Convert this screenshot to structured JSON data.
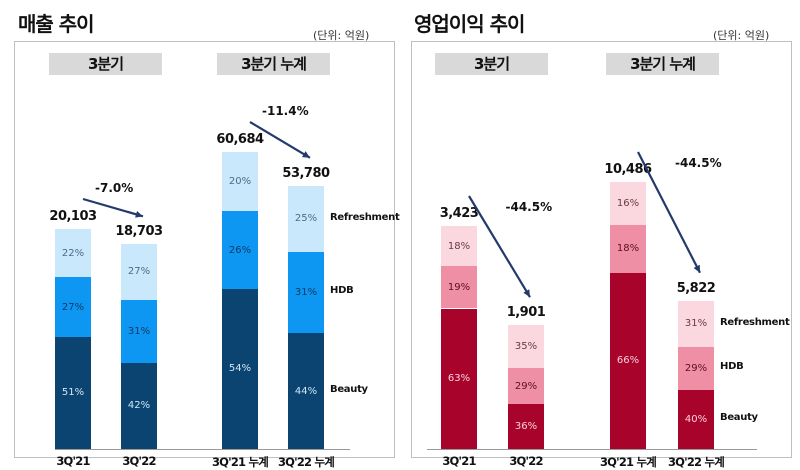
{
  "chart_data": [
    {
      "type": "bar",
      "stacked": true,
      "title": "매출 추이",
      "unit": "(단위: 억원)",
      "colors": {
        "Beauty": "#0b4470",
        "HDB": "#0d96f2",
        "Refreshment": "#c9e8fb"
      },
      "label_colors": {
        "Beauty": "#cfe6f7",
        "HDB": "#0b3d66",
        "Refreshment": "#4a6d88"
      },
      "legend": [
        "Refreshment",
        "HDB",
        "Beauty"
      ],
      "groups": [
        {
          "label": "3분기",
          "categories": [
            "3Q'21",
            "3Q'22"
          ],
          "totals": [
            "20,103",
            "18,703"
          ],
          "total_values": [
            20103,
            18703
          ],
          "change": "-7.0%",
          "series": [
            {
              "name": "Beauty",
              "values": [
                "51%",
                "42%"
              ]
            },
            {
              "name": "HDB",
              "values": [
                "27%",
                "31%"
              ]
            },
            {
              "name": "Refreshment",
              "values": [
                "22%",
                "27%"
              ]
            }
          ]
        },
        {
          "label": "3분기 누계",
          "categories": [
            "3Q'21 누계",
            "3Q'22 누계"
          ],
          "totals": [
            "60,684",
            "53,780"
          ],
          "total_values": [
            60684,
            53780
          ],
          "change": "-11.4%",
          "series": [
            {
              "name": "Beauty",
              "values": [
                "54%",
                "44%"
              ]
            },
            {
              "name": "HDB",
              "values": [
                "26%",
                "31%"
              ]
            },
            {
              "name": "Refreshment",
              "values": [
                "20%",
                "25%"
              ]
            }
          ]
        }
      ]
    },
    {
      "type": "bar",
      "stacked": true,
      "title": "영업이익 추이",
      "unit": "(단위: 억원)",
      "colors": {
        "Beauty": "#a8042b",
        "HDB": "#ef8fa6",
        "Refreshment": "#fbd8df"
      },
      "label_colors": {
        "Beauty": "#fbd2dc",
        "HDB": "#5a1020",
        "Refreshment": "#6a3a44"
      },
      "legend": [
        "Refreshment",
        "HDB",
        "Beauty"
      ],
      "groups": [
        {
          "label": "3분기",
          "categories": [
            "3Q'21",
            "3Q'22"
          ],
          "totals": [
            "3,423",
            "1,901"
          ],
          "total_values": [
            3423,
            1901
          ],
          "change": "-44.5%",
          "series": [
            {
              "name": "Beauty",
              "values": [
                "63%",
                "36%"
              ]
            },
            {
              "name": "HDB",
              "values": [
                "19%",
                "29%"
              ]
            },
            {
              "name": "Refreshment",
              "values": [
                "18%",
                "35%"
              ]
            }
          ]
        },
        {
          "label": "3분기 누계",
          "categories": [
            "3Q'21 누계",
            "3Q'22 누계"
          ],
          "totals": [
            "10,486",
            "5,822"
          ],
          "total_values": [
            10486,
            5822
          ],
          "change": "-44.5%",
          "series": [
            {
              "name": "Beauty",
              "values": [
                "66%",
                "40%"
              ]
            },
            {
              "name": "HDB",
              "values": [
                "18%",
                "29%"
              ]
            },
            {
              "name": "Refreshment",
              "values": [
                "16%",
                "31%"
              ]
            }
          ]
        }
      ]
    }
  ]
}
